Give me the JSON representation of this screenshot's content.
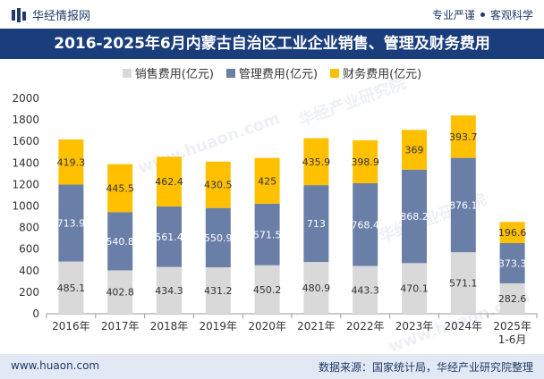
{
  "header": {
    "brand_name": "华经情报网",
    "slogan_left": "专业严谨",
    "slogan_right": "客观科学"
  },
  "footer": {
    "url": "www.huaon.com",
    "source": "数据来源：国家统计局，华经产业研究院整理"
  },
  "watermark": {
    "text": "华经产业研究院",
    "url": "www.huaon.com"
  },
  "colors": {
    "title_band": "#1a3d7c",
    "sales": "#d9d9d9",
    "admin": "#6a7fa8",
    "finance": "#ffc000"
  },
  "chart_data": {
    "type": "bar",
    "stacked": true,
    "title": "2016-2025年6月内蒙古自治区工业企业销售、管理及财务费用",
    "categories": [
      "2016年",
      "2017年",
      "2018年",
      "2019年",
      "2020年",
      "2021年",
      "2022年",
      "2023年",
      "2024年",
      "2025年\n1-6月"
    ],
    "series": [
      {
        "name": "销售费用(亿元)",
        "values": [
          485.1,
          402.8,
          434.3,
          431.2,
          450.2,
          480.9,
          443.3,
          470.1,
          571.1,
          282.6
        ]
      },
      {
        "name": "管理费用(亿元)",
        "values": [
          713.9,
          540.8,
          561.4,
          550.9,
          571.5,
          713,
          768.4,
          868.2,
          876.1,
          373.3
        ]
      },
      {
        "name": "财务费用(亿元)",
        "values": [
          419.3,
          445.5,
          462.4,
          430.5,
          425,
          435.9,
          398.9,
          369,
          393.7,
          196.6
        ]
      }
    ],
    "ylim": [
      0,
      2000
    ],
    "yticks": [
      0,
      200,
      400,
      600,
      800,
      1000,
      1200,
      1400,
      1600,
      1800,
      2000
    ],
    "xlabel": "",
    "ylabel": "",
    "legend_position": "top"
  }
}
